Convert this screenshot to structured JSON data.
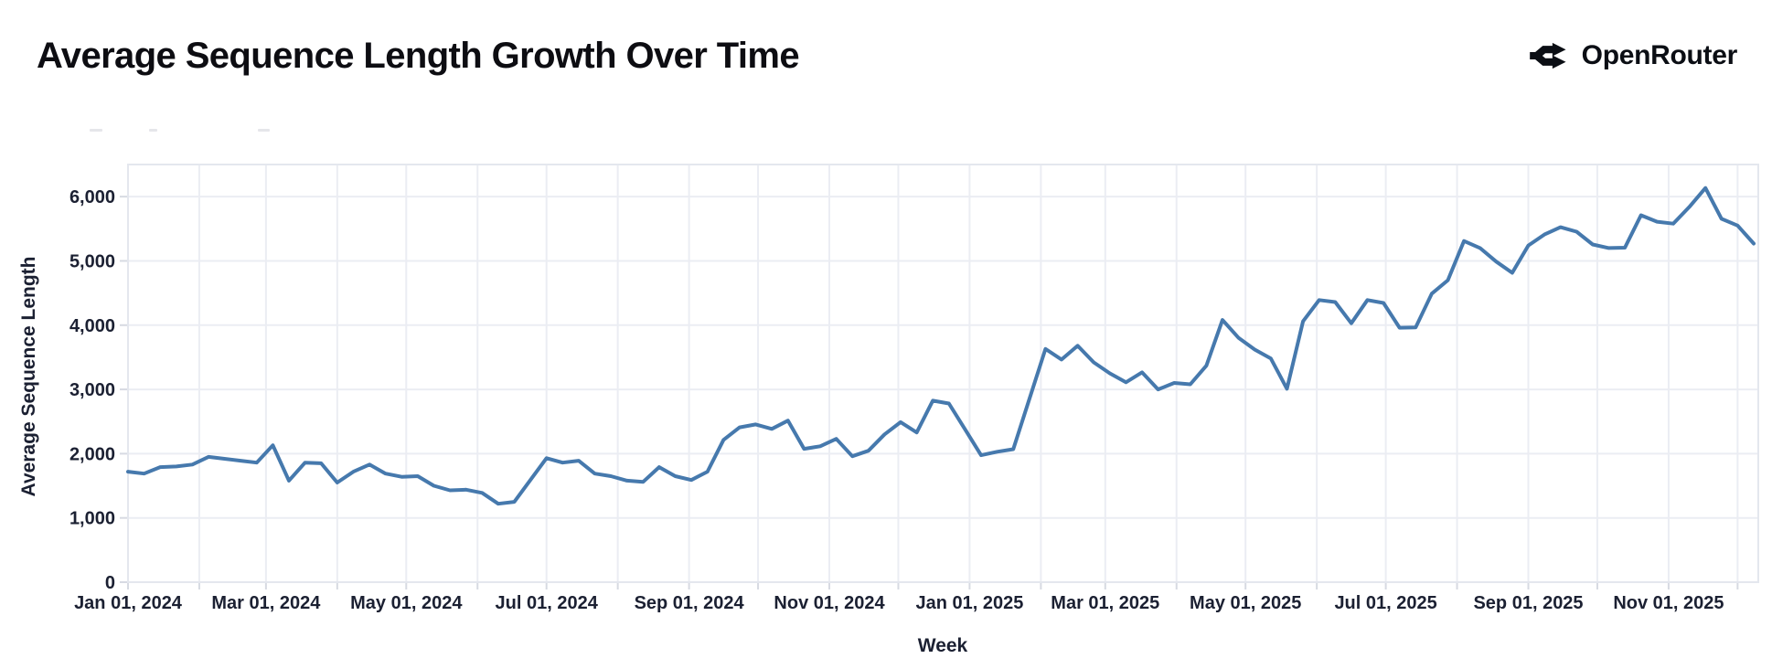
{
  "header": {
    "title": "Average Sequence Length Growth Over Time",
    "brand": {
      "name": "OpenRouter",
      "icon": "openrouter-fork-arrows-icon"
    }
  },
  "colors": {
    "background": "#ffffff",
    "line": "#4679ad",
    "grid": "#ebedf3",
    "plot_border": "#e4e7ee",
    "tick_mark": "#d7dae2",
    "axis_text": "#1b2032",
    "title_text": "#0d0d12",
    "brand_text": "#0b0e14",
    "artifact": "#dcdee3"
  },
  "chart_data": {
    "type": "line",
    "title": "Average Sequence Length Growth Over Time",
    "xlabel": "Week",
    "ylabel": "Average Sequence Length",
    "legend": "none",
    "grid": "on",
    "x_grid": "monthly",
    "x_start": "2024-01-01",
    "x_span_days": 709,
    "ylim": [
      0,
      6500
    ],
    "y_ticks": [
      0,
      1000,
      2000,
      3000,
      4000,
      5000,
      6000
    ],
    "x_ticks": [
      {
        "d": "2024-01-01",
        "label": "Jan 01, 2024"
      },
      {
        "d": "2024-03-01",
        "label": "Mar 01, 2024"
      },
      {
        "d": "2024-05-01",
        "label": "May 01, 2024"
      },
      {
        "d": "2024-07-01",
        "label": "Jul 01, 2024"
      },
      {
        "d": "2024-09-01",
        "label": "Sep 01, 2024"
      },
      {
        "d": "2024-11-01",
        "label": "Nov 01, 2024"
      },
      {
        "d": "2025-01-01",
        "label": "Jan 01, 2025"
      },
      {
        "d": "2025-03-01",
        "label": "Mar 01, 2025"
      },
      {
        "d": "2025-05-01",
        "label": "May 01, 2025"
      },
      {
        "d": "2025-07-01",
        "label": "Jul 01, 2025"
      },
      {
        "d": "2025-09-01",
        "label": "Sep 01, 2025"
      },
      {
        "d": "2025-11-01",
        "label": "Nov 01, 2025"
      }
    ],
    "series": [
      {
        "color": "#4679ad",
        "points": [
          [
            "2024-01-01",
            1720
          ],
          [
            "2024-01-08",
            1690
          ],
          [
            "2024-01-15",
            1790
          ],
          [
            "2024-01-22",
            1800
          ],
          [
            "2024-01-29",
            1830
          ],
          [
            "2024-02-05",
            1950
          ],
          [
            "2024-02-12",
            1920
          ],
          [
            "2024-02-19",
            1890
          ],
          [
            "2024-02-26",
            1860
          ],
          [
            "2024-03-04",
            2130
          ],
          [
            "2024-03-11",
            1580
          ],
          [
            "2024-03-18",
            1860
          ],
          [
            "2024-03-25",
            1850
          ],
          [
            "2024-04-01",
            1550
          ],
          [
            "2024-04-08",
            1720
          ],
          [
            "2024-04-15",
            1830
          ],
          [
            "2024-04-22",
            1690
          ],
          [
            "2024-04-29",
            1640
          ],
          [
            "2024-05-06",
            1650
          ],
          [
            "2024-05-13",
            1500
          ],
          [
            "2024-05-20",
            1430
          ],
          [
            "2024-05-27",
            1440
          ],
          [
            "2024-06-03",
            1390
          ],
          [
            "2024-06-10",
            1220
          ],
          [
            "2024-06-17",
            1250
          ],
          [
            "2024-06-24",
            1590
          ],
          [
            "2024-07-01",
            1930
          ],
          [
            "2024-07-08",
            1860
          ],
          [
            "2024-07-15",
            1890
          ],
          [
            "2024-07-22",
            1690
          ],
          [
            "2024-07-29",
            1650
          ],
          [
            "2024-08-05",
            1580
          ],
          [
            "2024-08-12",
            1560
          ],
          [
            "2024-08-19",
            1790
          ],
          [
            "2024-08-26",
            1650
          ],
          [
            "2024-09-02",
            1590
          ],
          [
            "2024-09-09",
            1720
          ],
          [
            "2024-09-16",
            2215
          ],
          [
            "2024-09-23",
            2410
          ],
          [
            "2024-09-30",
            2455
          ],
          [
            "2024-10-07",
            2385
          ],
          [
            "2024-10-14",
            2515
          ],
          [
            "2024-10-21",
            2075
          ],
          [
            "2024-10-28",
            2115
          ],
          [
            "2024-11-04",
            2230
          ],
          [
            "2024-11-11",
            1960
          ],
          [
            "2024-11-18",
            2045
          ],
          [
            "2024-11-25",
            2300
          ],
          [
            "2024-12-02",
            2490
          ],
          [
            "2024-12-09",
            2330
          ],
          [
            "2024-12-16",
            2825
          ],
          [
            "2024-12-23",
            2780
          ],
          [
            "2024-12-30",
            2380
          ],
          [
            "2025-01-06",
            1975
          ],
          [
            "2025-01-13",
            2030
          ],
          [
            "2025-01-20",
            2070
          ],
          [
            "2025-01-27",
            2850
          ],
          [
            "2025-02-03",
            3630
          ],
          [
            "2025-02-10",
            3465
          ],
          [
            "2025-02-17",
            3680
          ],
          [
            "2025-02-24",
            3420
          ],
          [
            "2025-03-03",
            3250
          ],
          [
            "2025-03-10",
            3110
          ],
          [
            "2025-03-17",
            3265
          ],
          [
            "2025-03-24",
            3000
          ],
          [
            "2025-03-31",
            3100
          ],
          [
            "2025-04-07",
            3080
          ],
          [
            "2025-04-14",
            3370
          ],
          [
            "2025-04-21",
            4080
          ],
          [
            "2025-04-28",
            3800
          ],
          [
            "2025-05-05",
            3620
          ],
          [
            "2025-05-12",
            3480
          ],
          [
            "2025-05-19",
            3010
          ],
          [
            "2025-05-26",
            4060
          ],
          [
            "2025-06-02",
            4390
          ],
          [
            "2025-06-09",
            4360
          ],
          [
            "2025-06-16",
            4030
          ],
          [
            "2025-06-23",
            4390
          ],
          [
            "2025-06-30",
            4345
          ],
          [
            "2025-07-07",
            3960
          ],
          [
            "2025-07-14",
            3965
          ],
          [
            "2025-07-21",
            4490
          ],
          [
            "2025-07-28",
            4700
          ],
          [
            "2025-08-04",
            5310
          ],
          [
            "2025-08-11",
            5200
          ],
          [
            "2025-08-18",
            4990
          ],
          [
            "2025-08-25",
            4815
          ],
          [
            "2025-09-01",
            5240
          ],
          [
            "2025-09-08",
            5410
          ],
          [
            "2025-09-15",
            5525
          ],
          [
            "2025-09-22",
            5455
          ],
          [
            "2025-09-29",
            5255
          ],
          [
            "2025-10-06",
            5200
          ],
          [
            "2025-10-13",
            5205
          ],
          [
            "2025-10-20",
            5710
          ],
          [
            "2025-10-27",
            5610
          ],
          [
            "2025-11-03",
            5580
          ],
          [
            "2025-11-10",
            5840
          ],
          [
            "2025-11-17",
            6135
          ],
          [
            "2025-11-24",
            5655
          ],
          [
            "2025-12-01",
            5550
          ],
          [
            "2025-12-08",
            5270
          ]
        ]
      }
    ]
  }
}
